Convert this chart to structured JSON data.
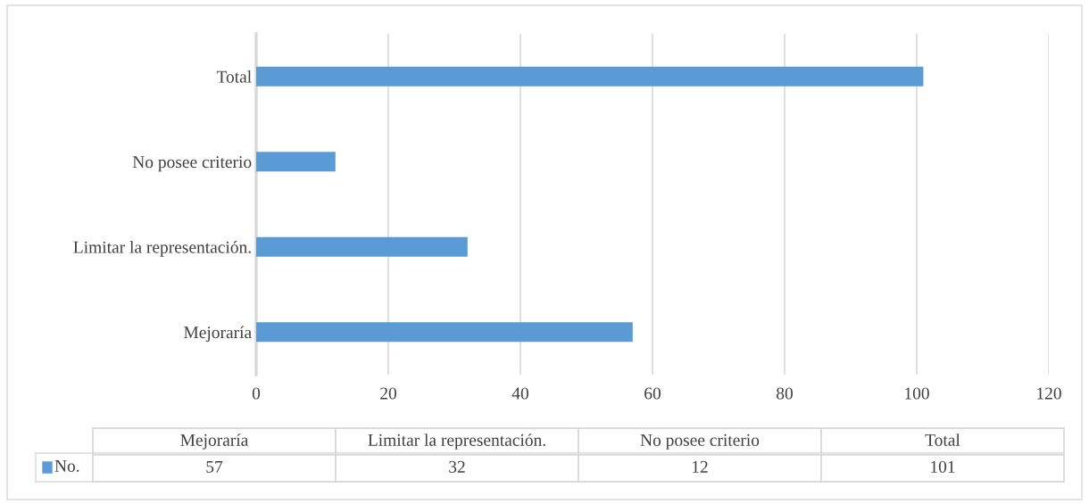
{
  "chart_data": {
    "type": "bar",
    "orientation": "horizontal",
    "categories": [
      "Total",
      "No posee criterio",
      "Limitar la representación.",
      "Mejoraría"
    ],
    "series": [
      {
        "name": "No.",
        "color": "#5b9bd5",
        "values": [
          101,
          12,
          32,
          57
        ]
      }
    ],
    "xlim": [
      0,
      120
    ],
    "xticks": [
      0,
      20,
      40,
      60,
      80,
      100,
      120
    ],
    "grid": "x",
    "annotations": [
      "57",
      "32",
      "12",
      "101"
    ]
  }
}
